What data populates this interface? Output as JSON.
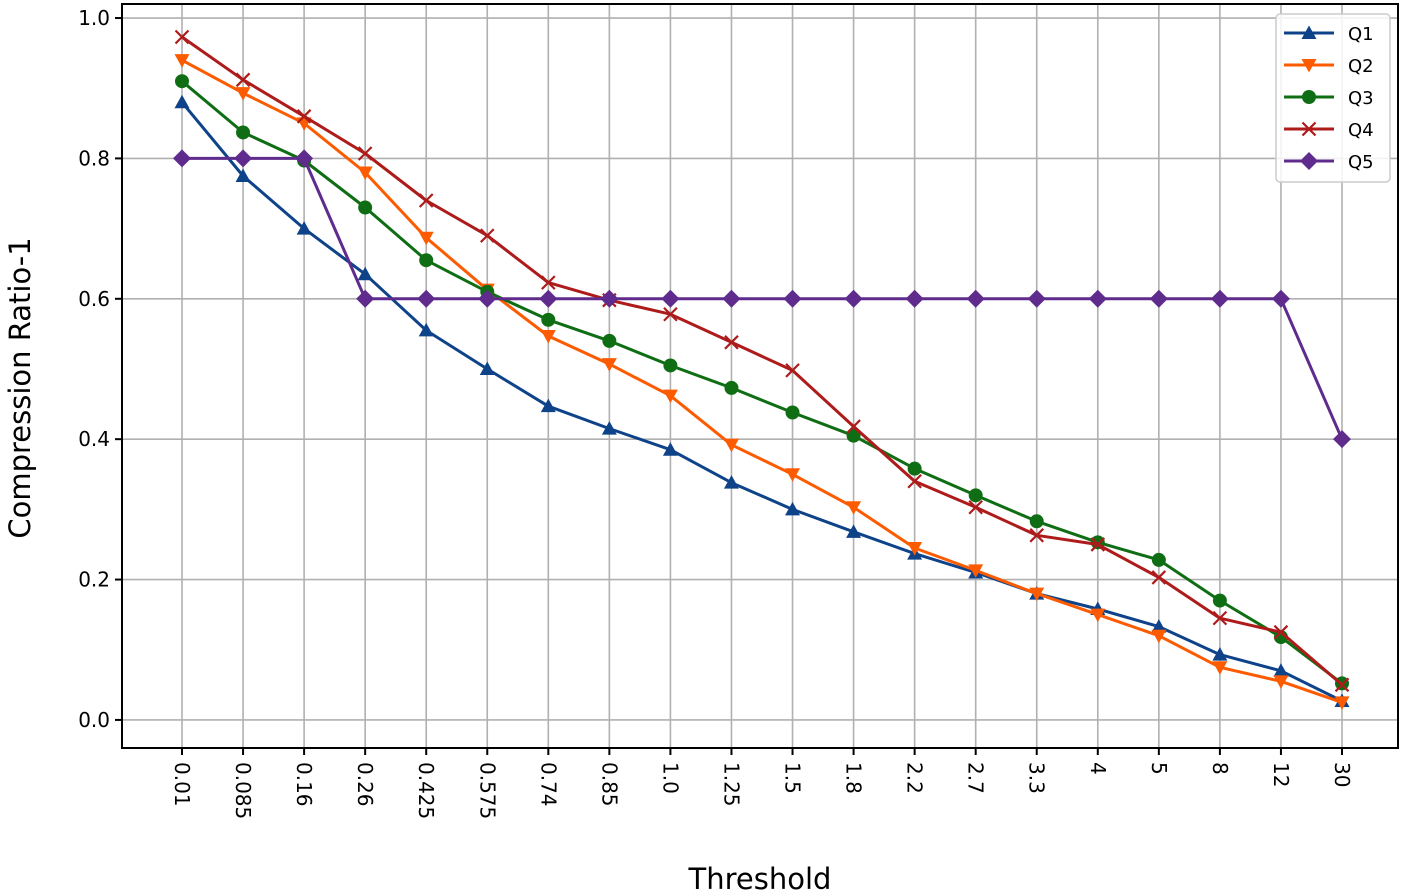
{
  "chart_data": {
    "type": "line",
    "title": "",
    "xlabel": "Threshold",
    "ylabel": "Compression Ratio-1",
    "categories": [
      "0.01",
      "0.085",
      "0.16",
      "0.26",
      "0.425",
      "0.575",
      "0.74",
      "0.85",
      "1.0",
      "1.25",
      "1.5",
      "1.8",
      "2.2",
      "2.7",
      "3.3",
      "4",
      "5",
      "8",
      "12",
      "30"
    ],
    "ylim": [
      -0.04,
      1.02
    ],
    "yticks": [
      "0.0",
      "0.2",
      "0.4",
      "0.6",
      "0.8",
      "1.0"
    ],
    "ytick_values": [
      0.0,
      0.2,
      0.4,
      0.6,
      0.8,
      1.0
    ],
    "grid": true,
    "legend_position": "top-right",
    "series": [
      {
        "name": "Q1",
        "color": "#0e4389",
        "marker": "triangle-up",
        "values": [
          0.88,
          0.775,
          0.7,
          0.635,
          0.555,
          0.5,
          0.447,
          0.415,
          0.385,
          0.338,
          0.3,
          0.268,
          0.237,
          0.21,
          0.18,
          0.158,
          0.133,
          0.093,
          0.07,
          0.027
        ]
      },
      {
        "name": "Q2",
        "color": "#fd5b00",
        "marker": "triangle-down",
        "values": [
          0.94,
          0.893,
          0.85,
          0.78,
          0.687,
          0.613,
          0.547,
          0.507,
          0.462,
          0.392,
          0.35,
          0.303,
          0.245,
          0.213,
          0.18,
          0.15,
          0.12,
          0.075,
          0.055,
          0.025
        ]
      },
      {
        "name": "Q3",
        "color": "#0f6e14",
        "marker": "circle",
        "values": [
          0.91,
          0.837,
          0.797,
          0.73,
          0.655,
          0.61,
          0.57,
          0.54,
          0.505,
          0.473,
          0.438,
          0.405,
          0.358,
          0.32,
          0.283,
          0.253,
          0.228,
          0.17,
          0.118,
          0.052
        ]
      },
      {
        "name": "Q4",
        "color": "#ae1b1b",
        "marker": "x",
        "values": [
          0.973,
          0.912,
          0.86,
          0.807,
          0.74,
          0.69,
          0.623,
          0.598,
          0.578,
          0.538,
          0.498,
          0.418,
          0.34,
          0.303,
          0.263,
          0.25,
          0.203,
          0.145,
          0.125,
          0.05
        ]
      },
      {
        "name": "Q5",
        "color": "#5f2b8d",
        "marker": "diamond",
        "values": [
          0.8,
          0.8,
          0.8,
          0.6,
          0.6,
          0.6,
          0.6,
          0.6,
          0.6,
          0.6,
          0.6,
          0.6,
          0.6,
          0.6,
          0.6,
          0.6,
          0.6,
          0.6,
          0.6,
          0.4
        ]
      }
    ]
  }
}
